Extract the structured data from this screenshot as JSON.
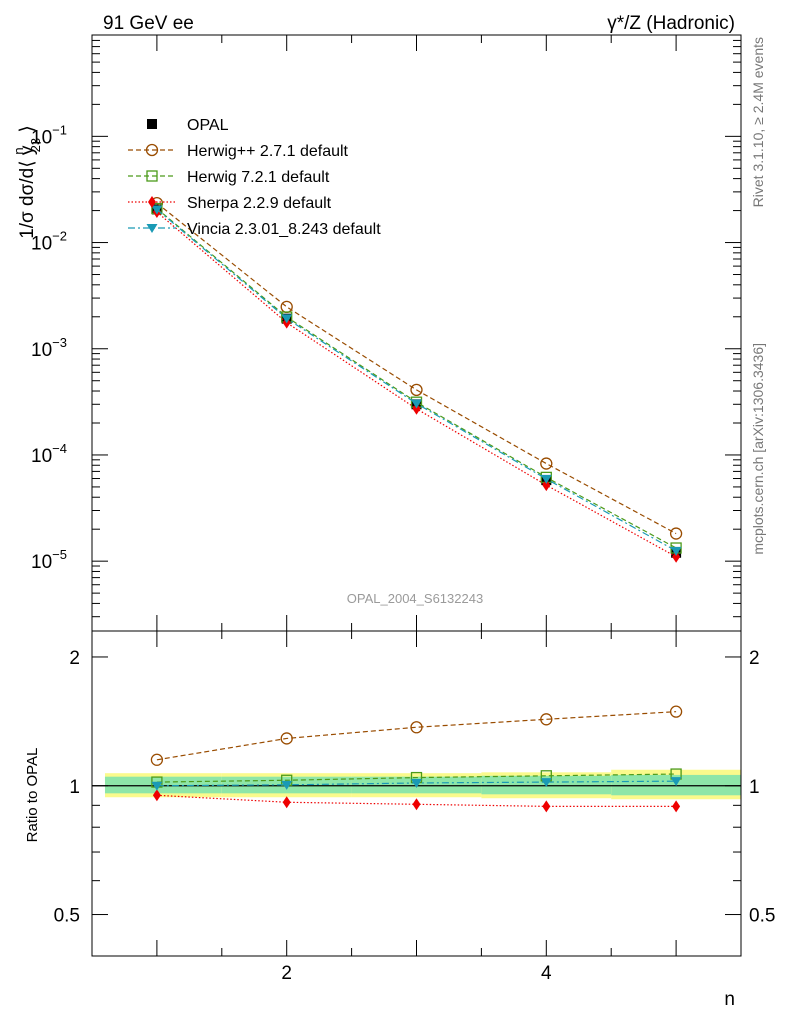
{
  "header": {
    "left_title": "91 GeV ee",
    "right_title": "γ*/Z (Hadronic)"
  },
  "side_text": {
    "rivet": "Rivet 3.1.10, ≥ 2.4M events",
    "mcplots": "mcplots.cern.ch [arXiv:1306.3436]"
  },
  "watermark": "OPAL_2004_S6132243",
  "colors": {
    "opal": "#000000",
    "herwigpp": "#994c00",
    "herwig7": "#4c9a1a",
    "sherpa": "#ee0000",
    "vincia": "#1a9ab5",
    "band_inner": "#8ee6a8",
    "band_outer": "#fafa8c"
  },
  "chart_data": [
    {
      "type": "line",
      "panel": "main",
      "ylabel_parts": {
        "prefix": "1/σ dσ/d⟨ y",
        "sup": "n",
        "sub": "23",
        "suffix": " ⟩"
      },
      "y_scale": "log",
      "xlim": [
        0.5,
        5.5
      ],
      "ylim": [
        2.2e-06,
        0.9
      ],
      "y_ticks": [
        {
          "value": 1e-05,
          "base": "10",
          "exp": "−5"
        },
        {
          "value": 0.0001,
          "base": "10",
          "exp": "−4"
        },
        {
          "value": 0.001,
          "base": "10",
          "exp": "−3"
        },
        {
          "value": 0.01,
          "base": "10",
          "exp": "−2"
        },
        {
          "value": 0.1,
          "base": "10",
          "exp": "−1"
        }
      ],
      "x": [
        1,
        2,
        3,
        4,
        5
      ],
      "series": [
        {
          "name": "OPAL",
          "key": "opal",
          "values": [
            0.0205,
            0.00192,
            0.0003,
            5.8e-05,
            1.2e-05
          ]
        },
        {
          "name": "Herwig++ 2.7.1 default",
          "key": "herwigpp",
          "values": [
            0.0235,
            0.00248,
            0.00041,
            8.3e-05,
            1.82e-05
          ]
        },
        {
          "name": "Herwig 7.2.1 default",
          "key": "herwig7",
          "values": [
            0.0209,
            0.00199,
            0.000314,
            6.15e-05,
            1.33e-05
          ]
        },
        {
          "name": "Sherpa 2.2.9 default",
          "key": "sherpa",
          "values": [
            0.0194,
            0.00176,
            0.000272,
            5.2e-05,
            1.1e-05
          ]
        },
        {
          "name": "Vincia 2.3.01_8.243 default",
          "key": "vincia",
          "values": [
            0.0205,
            0.00193,
            0.000305,
            5.95e-05,
            1.25e-05
          ]
        }
      ]
    },
    {
      "type": "line",
      "panel": "ratio",
      "ylabel": "Ratio to OPAL",
      "xlabel": "n",
      "y_scale": "log",
      "xlim": [
        0.5,
        5.5
      ],
      "ylim": [
        0.4,
        2.3
      ],
      "x_ticks": [
        2,
        4
      ],
      "x_tick_labels": [
        "2",
        "4"
      ],
      "y_ticks": [
        0.5,
        1,
        2
      ],
      "y_tick_labels": [
        "0.5",
        "1",
        "2"
      ],
      "x": [
        1,
        2,
        3,
        4,
        5
      ],
      "bands": [
        {
          "x_range": [
            0.6,
            1.5
          ],
          "inner": [
            0.96,
            1.05
          ],
          "outer": [
            0.94,
            1.07
          ]
        },
        {
          "x_range": [
            1.5,
            2.5
          ],
          "inner": [
            0.96,
            1.05
          ],
          "outer": [
            0.94,
            1.07
          ]
        },
        {
          "x_range": [
            2.5,
            3.5
          ],
          "inner": [
            0.96,
            1.05
          ],
          "outer": [
            0.94,
            1.07
          ]
        },
        {
          "x_range": [
            3.5,
            4.5
          ],
          "inner": [
            0.955,
            1.055
          ],
          "outer": [
            0.935,
            1.075
          ]
        },
        {
          "x_range": [
            4.5,
            5.5
          ],
          "inner": [
            0.95,
            1.06
          ],
          "outer": [
            0.93,
            1.09
          ]
        }
      ],
      "series": [
        {
          "name": "Herwig++ 2.7.1 default",
          "key": "herwigpp",
          "values": [
            1.15,
            1.29,
            1.37,
            1.43,
            1.49
          ]
        },
        {
          "name": "Herwig 7.2.1 default",
          "key": "herwig7",
          "values": [
            1.02,
            1.03,
            1.045,
            1.055,
            1.065
          ]
        },
        {
          "name": "Sherpa 2.2.9 default",
          "key": "sherpa",
          "values": [
            0.95,
            0.915,
            0.905,
            0.895,
            0.895
          ]
        },
        {
          "name": "Vincia 2.3.01_8.243 default",
          "key": "vincia",
          "values": [
            1.0,
            1.005,
            1.015,
            1.02,
            1.025
          ]
        }
      ]
    }
  ]
}
